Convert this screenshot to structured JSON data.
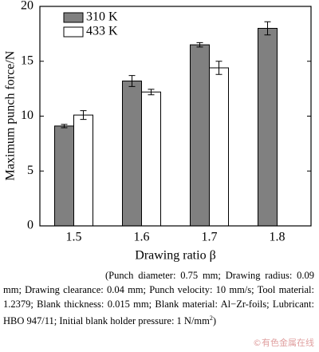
{
  "chart_data": {
    "type": "bar",
    "ylabel": "Maximum punch force/N",
    "xlabel": "Drawing ratio β",
    "categories": [
      "1.5",
      "1.6",
      "1.7",
      "1.8"
    ],
    "series": [
      {
        "name": "310 K",
        "color": "#808080",
        "values": [
          9.1,
          13.2,
          16.5,
          18.0
        ],
        "errors": [
          0.15,
          0.5,
          0.2,
          0.6
        ]
      },
      {
        "name": "433 K",
        "color": "#ffffff",
        "values": [
          10.1,
          12.2,
          14.4,
          null
        ],
        "errors": [
          0.4,
          0.25,
          0.6,
          null
        ]
      }
    ],
    "ylim": [
      0,
      20
    ],
    "yticks": [
      0,
      5,
      10,
      15,
      20
    ],
    "legend": "upper left"
  },
  "caption": {
    "text": "(Punch diameter: 0.75 mm; Drawing radius: 0.09 mm; Drawing clearance: 0.04 mm; Punch velocity: 10 mm/s; Tool material: 1.2379; Blank thickness: 0.015 mm; Blank material: Al−Zr-foils; Lubricant: HBO 947/11; Initial blank holder pressure: 1 N/mm",
    "sup": "2",
    "end": ")"
  },
  "watermark": "©有色金属在线"
}
